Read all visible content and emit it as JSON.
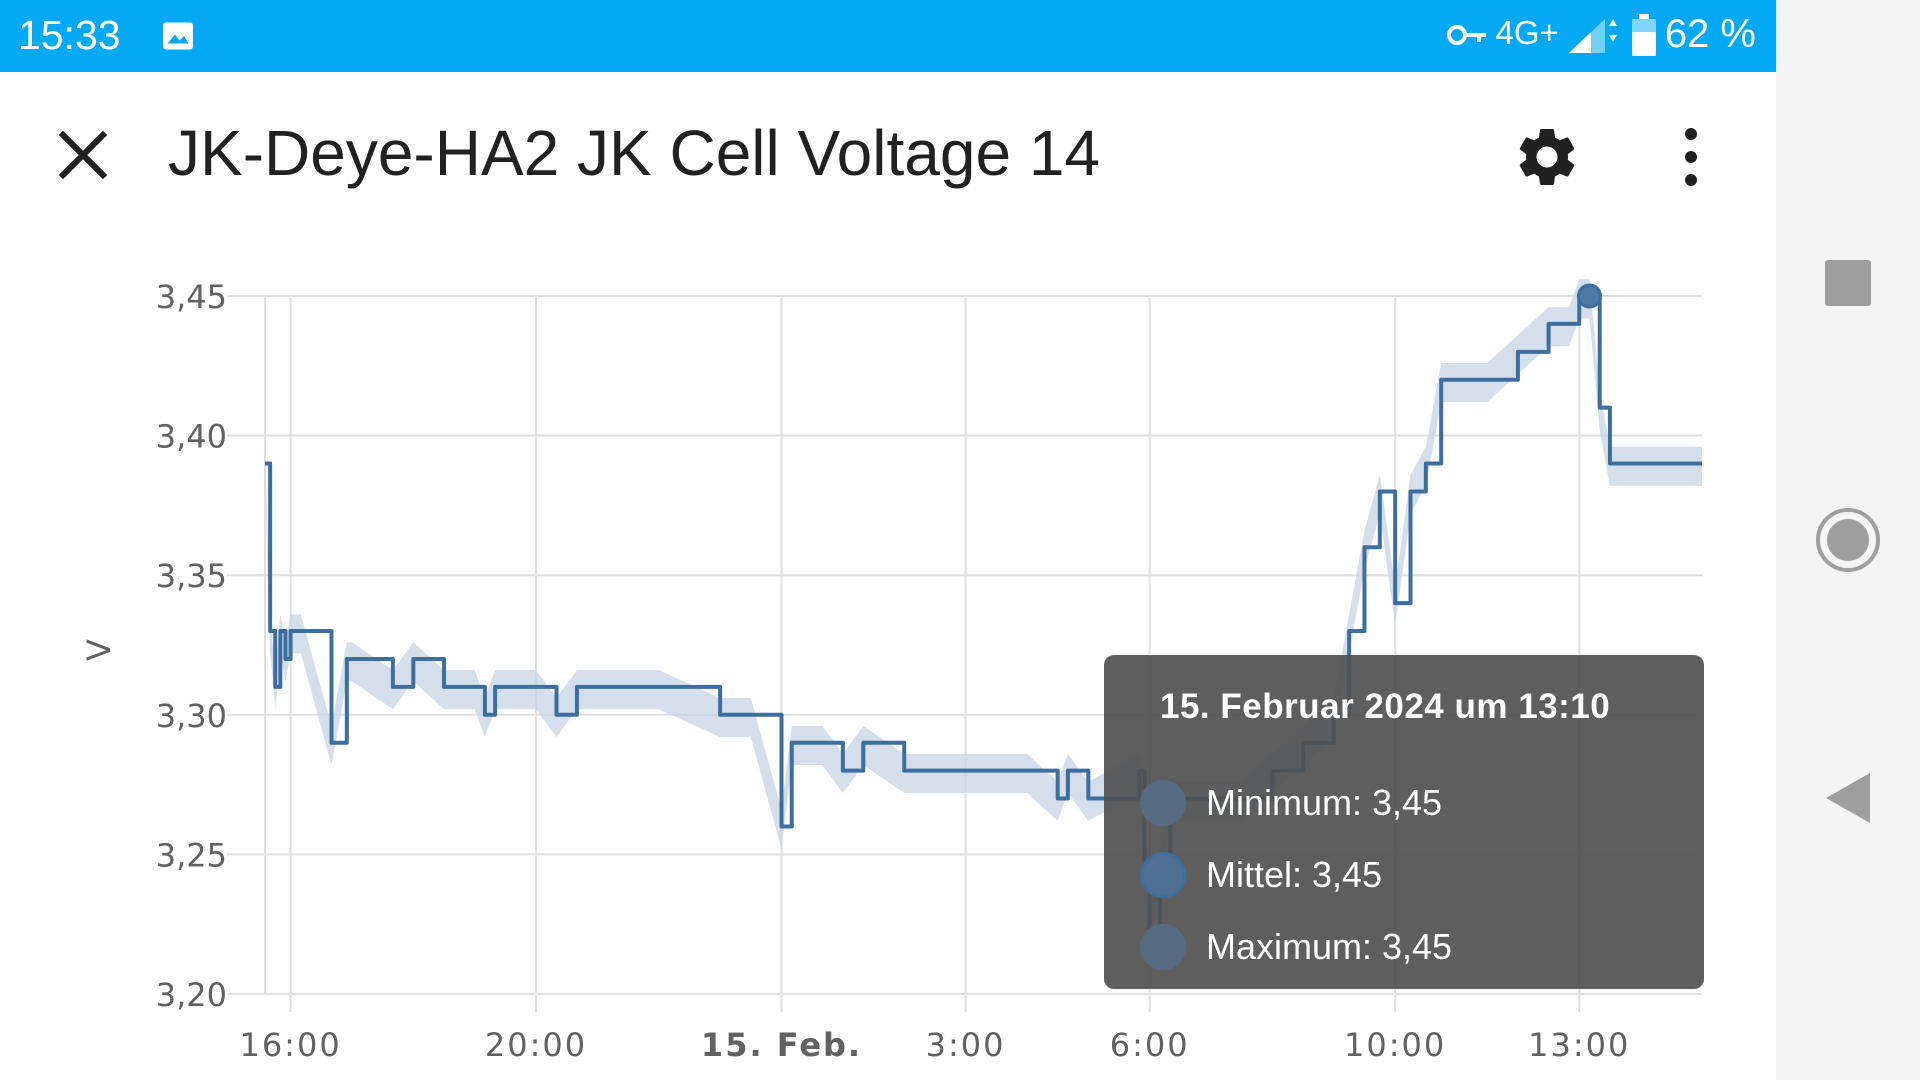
{
  "status_bar": {
    "time": "15:33",
    "network": "4G+",
    "battery": "62 %",
    "icons": [
      "image-icon",
      "vpn-key-icon",
      "signal-icon",
      "battery-icon"
    ]
  },
  "header": {
    "title": "JK-Deye-HA2 JK Cell Voltage 14",
    "icons": [
      "close-icon",
      "settings-icon",
      "more-vert-icon"
    ]
  },
  "colors": {
    "status_bar": "#03a9f4",
    "line": "#3c6e9f",
    "band": "#c6d4e4",
    "tooltip_bg": "#555555"
  },
  "chart_data": {
    "type": "line",
    "title": "",
    "ylabel": "V",
    "xlabel": "",
    "ylim": [
      3.2,
      3.45
    ],
    "yticks": [
      "3,45",
      "3,40",
      "3,35",
      "3,30",
      "3,25",
      "3,20"
    ],
    "xticks": [
      "16:00",
      "20:00",
      "15. Feb.",
      "3:00",
      "6:00",
      "10:00",
      "13:00"
    ],
    "grid": true,
    "series": [
      {
        "name": "Mittel",
        "x": [
          "15:35",
          "15:40",
          "15:45",
          "15:50",
          "15:55",
          "16:00",
          "16:10",
          "16:40",
          "16:55",
          "17:00",
          "17:40",
          "18:00",
          "18:30",
          "19:00",
          "19:10",
          "19:20",
          "19:40",
          "20:00",
          "20:20",
          "20:40",
          "21:00",
          "21:20",
          "22:00",
          "23:00",
          "23:30",
          "0:00",
          "0:10",
          "0:40",
          "1:00",
          "1:20",
          "2:00",
          "2:30",
          "3:00",
          "4:00",
          "4:30",
          "4:40",
          "5:00",
          "5:50",
          "5:55",
          "6:00",
          "6:10",
          "6:20",
          "6:40",
          "7:00",
          "7:30",
          "8:00",
          "8:30",
          "9:00",
          "9:15",
          "9:30",
          "9:45",
          "10:00",
          "10:15",
          "10:30",
          "10:45",
          "11:00",
          "11:30",
          "12:00",
          "12:30",
          "12:50",
          "13:00",
          "13:10",
          "13:20",
          "13:30",
          "13:45",
          "14:00",
          "14:30",
          "15:00"
        ],
        "y": [
          3.39,
          3.33,
          3.31,
          3.33,
          3.32,
          3.33,
          3.33,
          3.29,
          3.32,
          3.32,
          3.31,
          3.32,
          3.31,
          3.31,
          3.3,
          3.31,
          3.31,
          3.31,
          3.3,
          3.31,
          3.31,
          3.31,
          3.31,
          3.3,
          3.3,
          3.26,
          3.29,
          3.29,
          3.28,
          3.29,
          3.28,
          3.28,
          3.28,
          3.28,
          3.27,
          3.28,
          3.27,
          3.28,
          3.24,
          3.22,
          3.25,
          3.27,
          3.27,
          3.27,
          3.27,
          3.28,
          3.29,
          3.3,
          3.33,
          3.36,
          3.38,
          3.34,
          3.38,
          3.39,
          3.42,
          3.42,
          3.42,
          3.43,
          3.44,
          3.44,
          3.45,
          3.45,
          3.41,
          3.39,
          3.39,
          3.39,
          3.39,
          3.39
        ]
      }
    ],
    "tooltip": {
      "title": "15. Februar 2024 um 13:10",
      "rows": [
        "Minimum: 3,45",
        "Mittel: 3,45",
        "Maximum: 3,45"
      ]
    }
  }
}
